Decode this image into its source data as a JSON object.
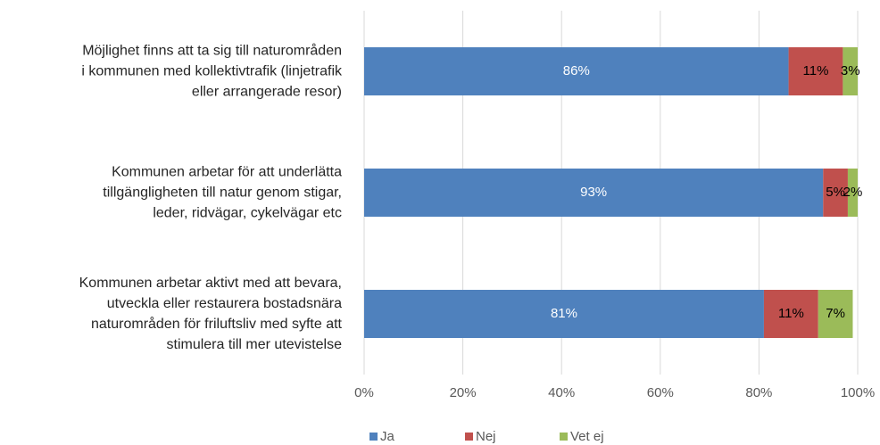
{
  "chart_data": {
    "type": "stacked_barh",
    "categories": [
      "Möjlighet finns att ta sig till naturområden\ni kommunen med kollektivtrafik (linjetrafik\neller arrangerade resor)",
      "Kommunen arbetar för att underlätta\ntillgängligheten till natur genom stigar,\nleder, ridvägar, cykelvägar etc",
      "Kommunen arbetar aktivt med att bevara,\nutveckla eller restaurera bostadsnära\nnaturområden för friluftsliv med syfte att\nstimulera till mer utevistelse"
    ],
    "series": [
      {
        "name": "Ja",
        "color": "#4f81bd",
        "values": [
          86,
          93,
          81
        ],
        "value_labels": [
          "86%",
          "93%",
          "81%"
        ]
      },
      {
        "name": "Nej",
        "color": "#c0504d",
        "values": [
          11,
          5,
          11
        ],
        "value_labels": [
          "11%",
          "5%",
          "11%"
        ]
      },
      {
        "name": "Vet ej",
        "color": "#9bbb59",
        "values": [
          3,
          2,
          7
        ],
        "value_labels": [
          "3%",
          "2%",
          "7%"
        ]
      }
    ],
    "xlim": [
      0,
      100
    ],
    "xticks": [
      {
        "value": 0,
        "label": "0%"
      },
      {
        "value": 20,
        "label": "20%"
      },
      {
        "value": 40,
        "label": "40%"
      },
      {
        "value": 60,
        "label": "60%"
      },
      {
        "value": 80,
        "label": "80%"
      },
      {
        "value": 100,
        "label": "100%"
      }
    ],
    "grid": true,
    "legend": "bottom"
  }
}
